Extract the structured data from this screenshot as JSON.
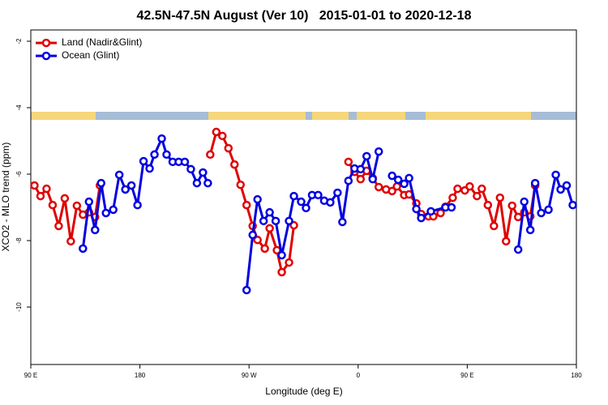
{
  "chart_data": {
    "type": "line",
    "title": "42.5N-47.5N August (Ver 10)   2015-01-01 to 2020-12-18",
    "xlabel": "Longitude (deg E)",
    "ylabel": "XCO2 - MLO trend (ppm)",
    "xlim": [
      90,
      540
    ],
    "ylim": [
      -11.73,
      -1.66
    ],
    "xticks": [
      {
        "value": 90,
        "label": "90 E"
      },
      180,
      {
        "value": 270,
        "label": "90 W"
      },
      {
        "value": 360,
        "label": "0"
      },
      {
        "value": 450,
        "label": "90 E"
      },
      {
        "value": 540,
        "label": "180"
      }
    ],
    "yticks": [
      -2,
      -4,
      -6,
      -8,
      -10
    ],
    "legend": "top-left",
    "series": [
      {
        "name": "Land (Nadir&Glint)",
        "color": "#e00000",
        "x": [
          93,
          98,
          103,
          108,
          113,
          118,
          123,
          128,
          133,
          138,
          143,
          147,
          null,
          238,
          243,
          248,
          253,
          258,
          263,
          268,
          273,
          277,
          283,
          287,
          293,
          297,
          303,
          307,
          null,
          352,
          357,
          362,
          367,
          372,
          377,
          383,
          388,
          392,
          398,
          402,
          408,
          412,
          418,
          422,
          428,
          432,
          438,
          442,
          448,
          452,
          458,
          462,
          467,
          472,
          477,
          482,
          487,
          492,
          497,
          502,
          506
        ],
        "values": [
          -6.34,
          -6.66,
          -6.44,
          -6.93,
          -7.56,
          -6.73,
          -8.02,
          -6.95,
          -7.22,
          -7.15,
          -7.29,
          -6.34,
          null,
          -5.41,
          -4.73,
          -4.85,
          -5.22,
          -5.71,
          -6.32,
          -6.93,
          -7.56,
          -7.98,
          -8.24,
          -7.63,
          -8.29,
          -8.95,
          -8.66,
          -7.54,
          null,
          -5.63,
          -5.93,
          -6.15,
          -5.9,
          -6.12,
          -6.39,
          -6.46,
          -6.51,
          -6.37,
          -6.63,
          -6.61,
          -6.88,
          -7.2,
          -7.27,
          -7.27,
          -7.17,
          -6.98,
          -6.71,
          -6.44,
          -6.49,
          -6.37,
          -6.66,
          -6.44,
          -6.93,
          -7.56,
          -6.71,
          -8.02,
          -6.95,
          -7.29,
          -7.15,
          -7.27,
          -6.34
        ]
      },
      {
        "name": "Ocean (Glint)",
        "color": "#0000e0",
        "x": [
          133,
          138,
          143,
          148,
          152,
          158,
          163,
          168,
          173,
          178,
          183,
          188,
          192,
          198,
          202,
          207,
          212,
          217,
          222,
          227,
          232,
          236,
          null,
          268,
          273,
          277,
          282,
          287,
          292,
          297,
          303,
          307,
          313,
          317,
          322,
          327,
          332,
          337,
          343,
          347,
          352,
          357,
          362,
          367,
          372,
          377,
          null,
          388,
          393,
          398,
          402,
          408,
          412,
          420,
          432,
          437,
          null,
          492,
          497,
          502,
          506,
          511,
          517,
          523,
          527,
          532,
          537
        ],
        "values": [
          -8.24,
          -6.83,
          -7.68,
          -6.27,
          -7.17,
          -7.07,
          -6.02,
          -6.46,
          -6.34,
          -6.93,
          -5.61,
          -5.83,
          -5.41,
          -4.93,
          -5.41,
          -5.63,
          -5.63,
          -5.63,
          -5.85,
          -6.27,
          -5.95,
          -6.27,
          null,
          -9.49,
          -7.83,
          -6.76,
          -7.41,
          -7.15,
          -7.41,
          -8.44,
          -7.41,
          -6.66,
          -6.83,
          -7.02,
          -6.63,
          -6.63,
          -6.8,
          -6.85,
          -6.56,
          -7.44,
          -6.2,
          -5.83,
          -5.85,
          -5.46,
          -6.15,
          -5.32,
          null,
          -6.05,
          -6.17,
          -6.29,
          -6.12,
          -7.05,
          -7.32,
          -7.12,
          -7.0,
          -7.0,
          null,
          -8.27,
          -6.83,
          -7.68,
          -6.27,
          -7.17,
          -7.07,
          -6.02,
          -6.46,
          -6.34,
          -6.93
        ]
      }
    ]
  }
}
